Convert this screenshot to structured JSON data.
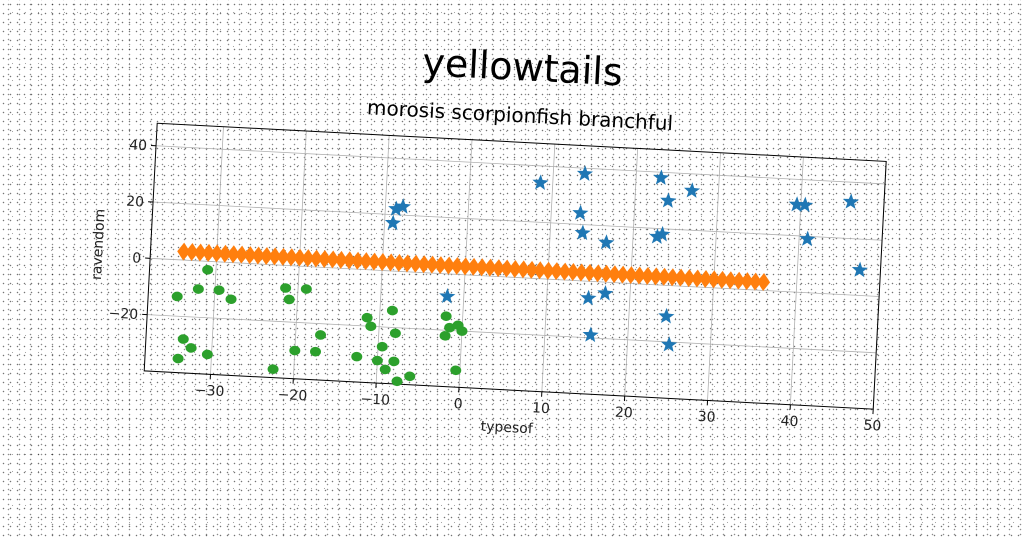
{
  "chart_data": {
    "type": "scatter",
    "title": "yellowtails",
    "subtitle": "morosis scorpionfish branchful",
    "xlabel": "typesof",
    "ylabel": "ravendom",
    "xlim": [
      -38,
      50
    ],
    "ylim": [
      -40,
      48
    ],
    "xticks": [
      -30,
      -20,
      -10,
      0,
      10,
      20,
      30,
      40,
      50
    ],
    "yticks": [
      -20,
      0,
      20,
      40
    ],
    "grid": true,
    "colors": {
      "blue": "#1f77b4",
      "orange": "#ff7f0e",
      "green": "#2ca02c"
    },
    "series": [
      {
        "marker": "star",
        "color": "#1f77b4",
        "points": [
          [
            -9,
            17
          ],
          [
            -8.7,
            22
          ],
          [
            -7.9,
            23
          ],
          [
            8.5,
            34
          ],
          [
            13.8,
            38
          ],
          [
            23,
            38
          ],
          [
            26.8,
            34
          ],
          [
            13.5,
            24
          ],
          [
            13.9,
            17
          ],
          [
            16.8,
            14
          ],
          [
            22.9,
            17
          ],
          [
            23.5,
            18
          ],
          [
            24,
            30
          ],
          [
            39.5,
            31
          ],
          [
            40.5,
            31
          ],
          [
            46,
            33
          ],
          [
            41,
            19
          ],
          [
            47.5,
            9
          ],
          [
            -2,
            -8
          ],
          [
            15,
            -6
          ],
          [
            17,
            -4
          ],
          [
            24.5,
            -11
          ],
          [
            15.5,
            -19
          ],
          [
            25,
            -21
          ]
        ]
      },
      {
        "marker": "diamond",
        "color": "#ff7f0e",
        "x_start": -34,
        "x_end": 36,
        "count": 71,
        "y": 3
      },
      {
        "marker": "circle",
        "color": "#2ca02c",
        "points": [
          [
            -31,
            -3
          ],
          [
            -34.5,
            -13
          ],
          [
            -32,
            -10
          ],
          [
            -29.5,
            -10
          ],
          [
            -28,
            -13
          ],
          [
            -33.5,
            -28
          ],
          [
            -32.5,
            -31
          ],
          [
            -34,
            -35
          ],
          [
            -30.5,
            -33
          ],
          [
            -21.5,
            -8
          ],
          [
            -21,
            -12
          ],
          [
            -19,
            -8
          ],
          [
            -17,
            -24
          ],
          [
            -20,
            -30
          ],
          [
            -17.5,
            -30
          ],
          [
            -22.5,
            -37
          ],
          [
            -12.5,
            -31
          ],
          [
            -11.5,
            -17
          ],
          [
            -11,
            -20
          ],
          [
            -8.5,
            -14
          ],
          [
            -8,
            -22
          ],
          [
            -9.5,
            -27
          ],
          [
            -10,
            -32
          ],
          [
            -9,
            -35
          ],
          [
            -8,
            -32
          ],
          [
            -6,
            -37
          ],
          [
            -7.5,
            -39
          ],
          [
            -2,
            -15
          ],
          [
            -2,
            -22
          ],
          [
            -1.5,
            -19
          ],
          [
            -0.5,
            -18
          ],
          [
            0,
            -20
          ],
          [
            -0.5,
            -34
          ]
        ]
      }
    ]
  }
}
